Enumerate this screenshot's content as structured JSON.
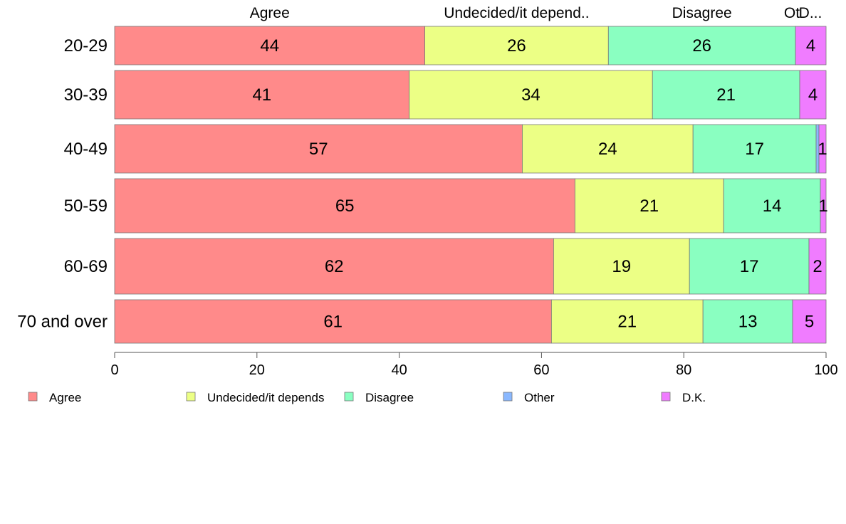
{
  "chart_data": {
    "type": "bar",
    "orientation": "horizontal",
    "stacked": true,
    "categories": [
      "20-29",
      "30-39",
      "40-49",
      "50-59",
      "60-69",
      "70 and over"
    ],
    "series": [
      {
        "name": "Agree",
        "color": "#ff8a8a",
        "values": [
          43.6,
          41.4,
          57.3,
          64.7,
          61.7,
          61.4
        ],
        "labels": [
          "44",
          "41",
          "57",
          "65",
          "62",
          "61"
        ]
      },
      {
        "name": "Undecided/it depends",
        "color": "#ecff85",
        "values": [
          25.8,
          34.2,
          24.0,
          20.9,
          19.1,
          21.3
        ],
        "labels": [
          "26",
          "34",
          "24",
          "21",
          "19",
          "21"
        ]
      },
      {
        "name": "Disagree",
        "color": "#8affc1",
        "values": [
          26.3,
          20.7,
          17.3,
          13.6,
          16.8,
          12.6
        ],
        "labels": [
          "26",
          "21",
          "17",
          "14",
          "17",
          "13"
        ]
      },
      {
        "name": "Other",
        "color": "#8ab8ff",
        "values": [
          0,
          0,
          0.4,
          0,
          0,
          0
        ],
        "labels": [
          "",
          "",
          "",
          "",
          "",
          ""
        ]
      },
      {
        "name": "D.K.",
        "color": "#f07cff",
        "values": [
          4.3,
          3.7,
          1.0,
          0.8,
          2.4,
          4.7
        ],
        "labels": [
          "4",
          "4",
          "1",
          "1",
          "2",
          "5"
        ]
      }
    ],
    "top_labels": [
      "Agree",
      "Undecided/it depend..",
      "Disagree",
      "Ot",
      "D..."
    ],
    "xlim": [
      0,
      100
    ],
    "xticks": [
      "0",
      "20",
      "40",
      "60",
      "80",
      "100"
    ],
    "grid": false,
    "legend": [
      "Agree",
      "Undecided/it depends",
      "Disagree",
      "Other",
      "D.K."
    ],
    "legend_position": "bottom"
  }
}
